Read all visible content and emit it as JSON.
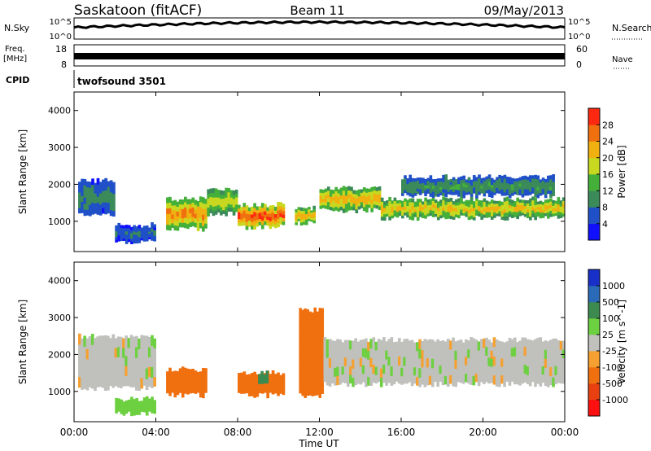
{
  "header": {
    "title": "Saskatoon (fitACF)",
    "beam": "Beam 11",
    "date": "09/May/2013"
  },
  "noise_panel": {
    "left_label": "N.Sky",
    "right_label": "N.Search",
    "left_ticks": [
      "10^5",
      "10^0"
    ],
    "right_ticks": [
      "10^5",
      "10^0"
    ]
  },
  "freq_panel": {
    "left_label_1": "Freq.",
    "left_label_2": "[MHz]",
    "left_ticks": [
      "18",
      "8"
    ],
    "right_label": "Nave",
    "right_ticks": [
      "60",
      "0"
    ]
  },
  "cpid_panel": {
    "label": "CPID",
    "value": "twofsound 3501"
  },
  "colors": {
    "power": [
      "#1010ff",
      "#2050c8",
      "#3a8a5a",
      "#44b03a",
      "#c8d820",
      "#f0b010",
      "#f07010",
      "#ff2810"
    ],
    "velocity": [
      "#1830c8",
      "#2a6ab8",
      "#3c8a50",
      "#6cd040",
      "#c0c0bc",
      "#f5a030",
      "#f07010",
      "#e84010",
      "#ff1010"
    ]
  },
  "chart_data": [
    {
      "type": "heatmap",
      "title": "Power",
      "xlabel": "",
      "ylabel": "Slant Range [km]",
      "x_range_hours": [
        0,
        24
      ],
      "ylim": [
        180,
        4500
      ],
      "yticks": [
        "4000",
        "3000",
        "2000",
        "1000"
      ],
      "colorbar_label": "Power [dB]",
      "colorbar_ticks": [
        "28",
        "24",
        "20",
        "16",
        "12",
        "8",
        "4"
      ],
      "colorbar_range": [
        0,
        32
      ],
      "regions": [
        {
          "start": 0.2,
          "end": 2.0,
          "range_lo": 1200,
          "range_hi": 2100,
          "power": 10
        },
        {
          "start": 2.0,
          "end": 4.0,
          "range_lo": 450,
          "range_hi": 900,
          "power": 8
        },
        {
          "start": 4.5,
          "end": 6.5,
          "range_lo": 800,
          "range_hi": 1600,
          "power": 26
        },
        {
          "start": 6.5,
          "end": 8.0,
          "range_lo": 1200,
          "range_hi": 1900,
          "power": 20
        },
        {
          "start": 8.0,
          "end": 10.3,
          "range_lo": 850,
          "range_hi": 1450,
          "power": 30
        },
        {
          "start": 10.8,
          "end": 11.8,
          "range_lo": 950,
          "range_hi": 1350,
          "power": 24
        },
        {
          "start": 12.0,
          "end": 15.0,
          "range_lo": 1300,
          "range_hi": 1900,
          "power": 24
        },
        {
          "start": 15.0,
          "end": 24.0,
          "range_lo": 1100,
          "range_hi": 1600,
          "power": 22
        },
        {
          "start": 16.0,
          "end": 23.5,
          "range_lo": 1700,
          "range_hi": 2200,
          "power": 12
        }
      ]
    },
    {
      "type": "heatmap",
      "title": "Velocity",
      "xlabel": "Time UT",
      "ylabel": "Slant Range [km]",
      "x_range_hours": [
        0,
        24
      ],
      "ylim": [
        180,
        4500
      ],
      "xticks": [
        "00:00",
        "04:00",
        "08:00",
        "12:00",
        "16:00",
        "20:00",
        "00:00"
      ],
      "yticks": [
        "4000",
        "3000",
        "2000",
        "1000"
      ],
      "colorbar_label": "Velocity [m s^-1]",
      "colorbar_ticks": [
        "1000",
        "500",
        "100",
        "25",
        "-25",
        "-100",
        "-500",
        "-1000"
      ],
      "regions": [
        {
          "start": 0.2,
          "end": 4.0,
          "range_lo": 1100,
          "range_hi": 2500,
          "velocity": 0
        },
        {
          "start": 2.0,
          "end": 4.0,
          "range_lo": 400,
          "range_hi": 800,
          "velocity": 60
        },
        {
          "start": 4.5,
          "end": 6.5,
          "range_lo": 900,
          "range_hi": 1600,
          "velocity": -150
        },
        {
          "start": 8.0,
          "end": 10.3,
          "range_lo": 900,
          "range_hi": 1500,
          "velocity": -300
        },
        {
          "start": 9.0,
          "end": 9.5,
          "range_lo": 1200,
          "range_hi": 1500,
          "velocity": 200
        },
        {
          "start": 11.0,
          "end": 12.2,
          "range_lo": 900,
          "range_hi": 3200,
          "velocity": -250
        },
        {
          "start": 12.2,
          "end": 24.0,
          "range_lo": 1200,
          "range_hi": 2400,
          "velocity": 0
        }
      ]
    }
  ]
}
